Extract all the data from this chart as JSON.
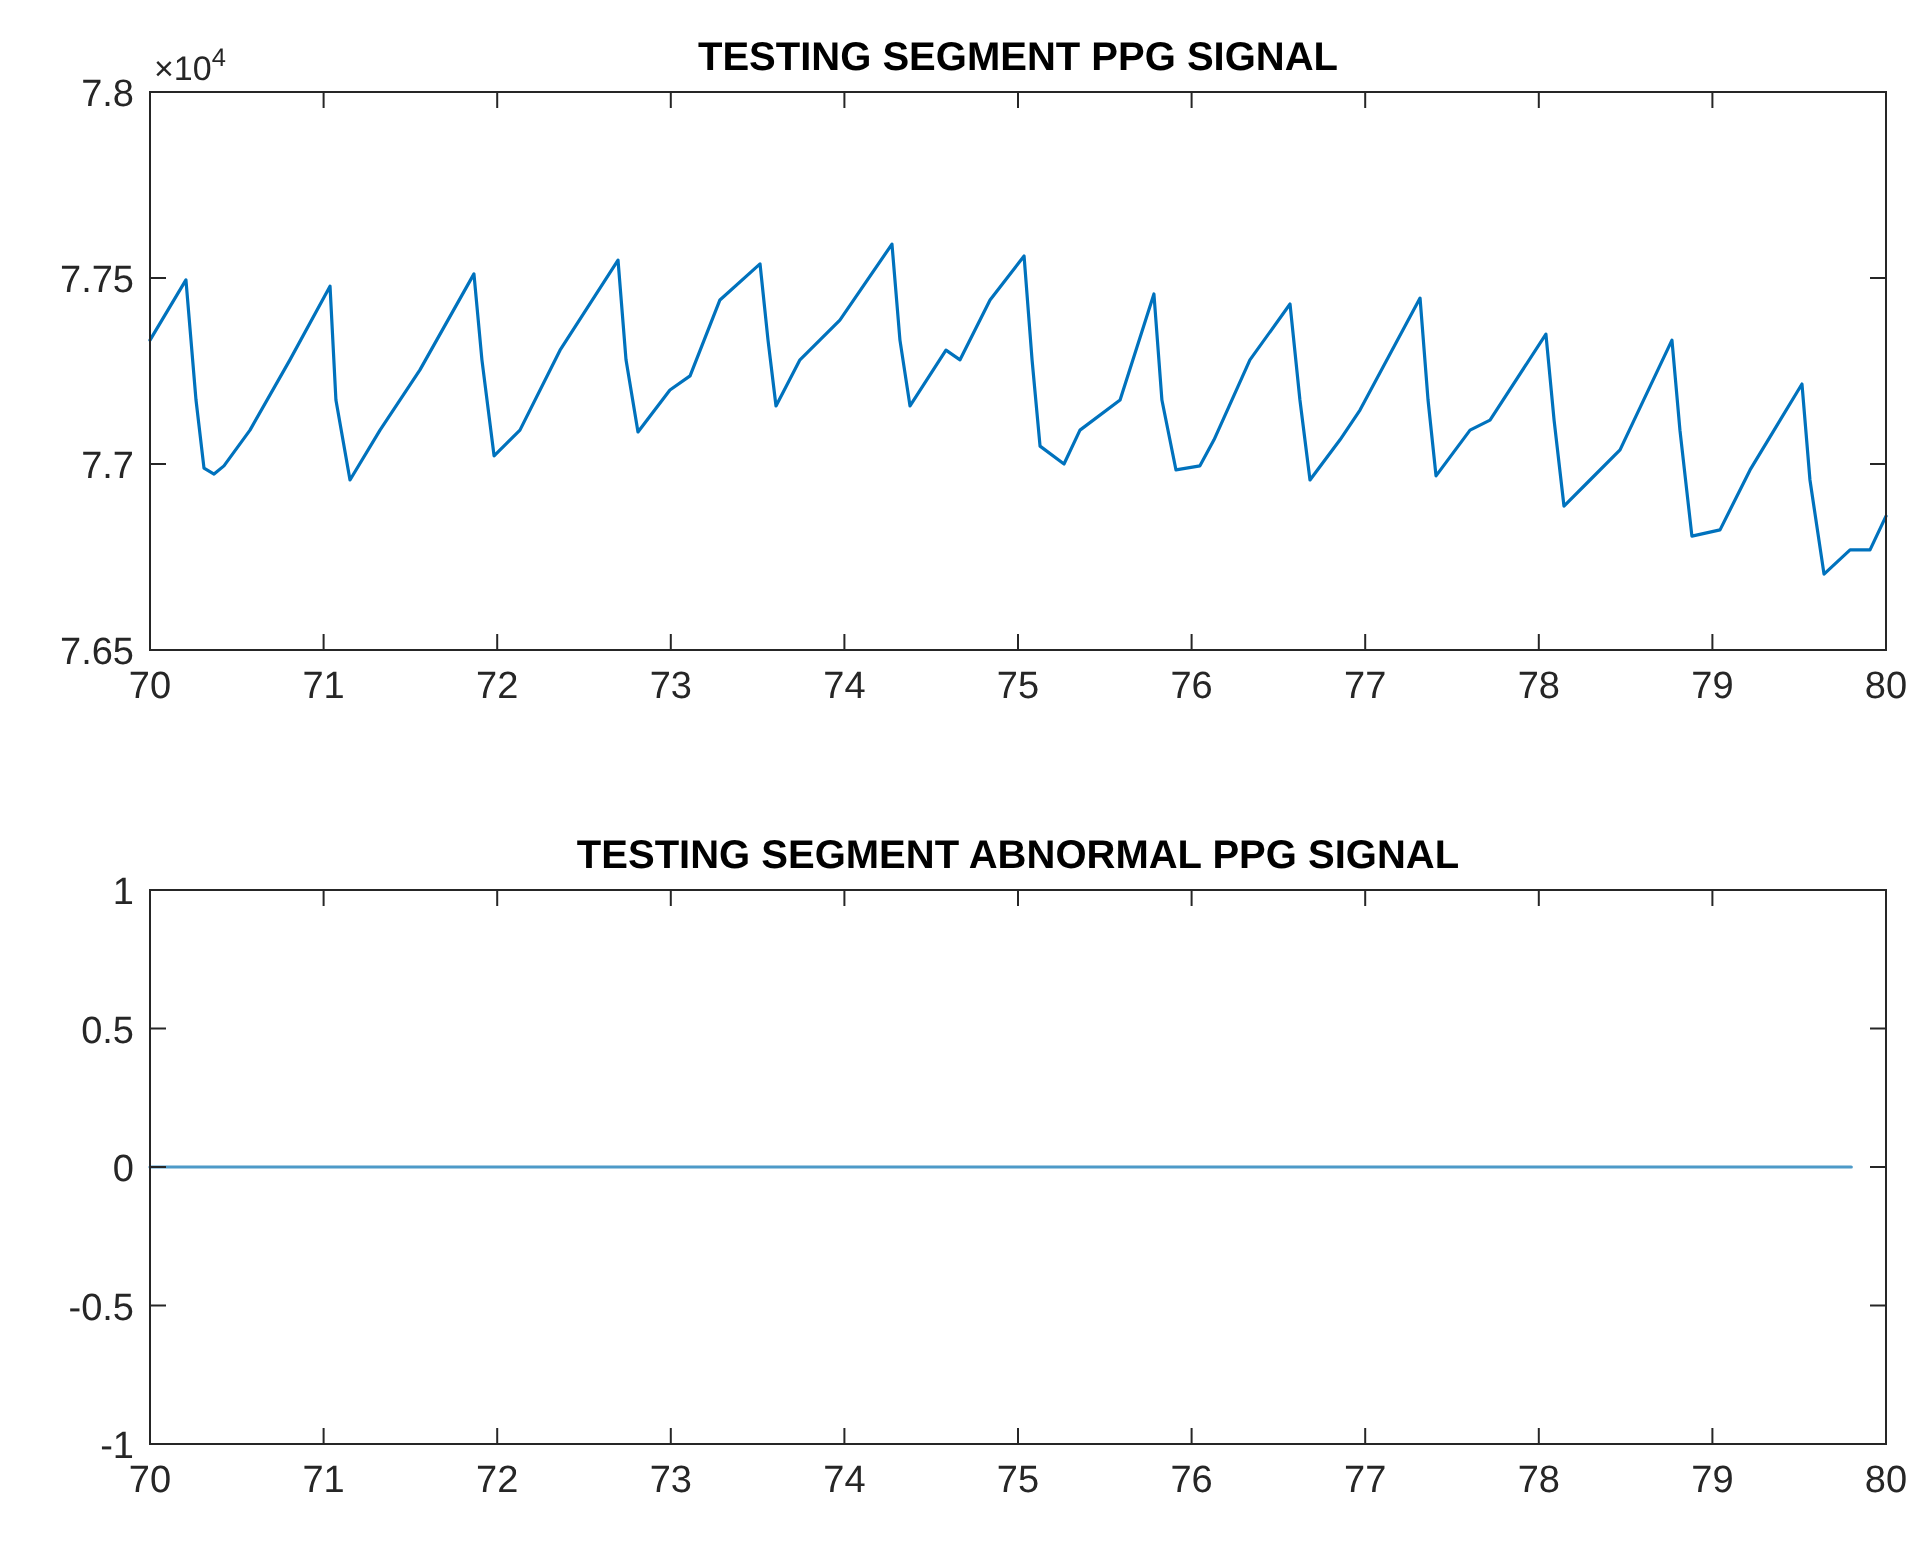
{
  "chart_data": [
    {
      "type": "line",
      "title": "TESTING SEGMENT PPG SIGNAL",
      "annotations": [
        "×10$^{4}$"
      ],
      "xlim": [
        70,
        80
      ],
      "xticks": [
        70,
        71,
        72,
        73,
        74,
        75,
        76,
        77,
        78,
        79,
        80
      ],
      "ylim": [
        7.65,
        7.8
      ],
      "yticks": [
        7.65,
        7.7,
        7.75,
        7.8
      ],
      "series": [
        {
          "color": "#0072bd",
          "x": [
            70.0,
            70.207,
            70.265,
            70.311,
            70.369,
            70.426,
            70.576,
            70.806,
            71.037,
            71.071,
            71.152,
            71.325,
            71.555,
            71.866,
            71.912,
            71.982,
            72.131,
            72.362,
            72.696,
            72.742,
            72.811,
            72.995,
            73.111,
            73.283,
            73.514,
            73.56,
            73.606,
            73.744,
            73.974,
            74.274,
            74.32,
            74.378,
            74.585,
            74.666,
            74.839,
            75.035,
            75.081,
            75.127,
            75.265,
            75.357,
            75.588,
            75.783,
            75.829,
            75.91,
            76.048,
            76.129,
            76.336,
            76.567,
            76.624,
            76.682,
            76.855,
            76.97,
            77.316,
            77.362,
            77.408,
            77.604,
            77.719,
            78.041,
            78.088,
            78.145,
            78.295,
            78.468,
            78.767,
            78.813,
            78.882,
            79.044,
            79.217,
            79.516,
            79.562,
            79.643,
            79.793,
            79.908,
            80.0
          ],
          "values": [
            7.7333,
            7.7495,
            7.7172,
            7.6989,
            7.6973,
            7.6995,
            7.7091,
            7.728,
            7.7478,
            7.7172,
            7.6957,
            7.7091,
            7.7253,
            7.7511,
            7.728,
            7.7022,
            7.7091,
            7.7306,
            7.7548,
            7.728,
            7.7086,
            7.7199,
            7.7237,
            7.7441,
            7.7538,
            7.7333,
            7.7156,
            7.728,
            7.7387,
            7.7591,
            7.7333,
            7.7156,
            7.7306,
            7.728,
            7.7441,
            7.7559,
            7.728,
            7.7048,
            7.7,
            7.7091,
            7.7172,
            7.7457,
            7.7172,
            7.6984,
            7.6995,
            7.7065,
            7.728,
            7.743,
            7.7172,
            7.6957,
            7.7065,
            7.7145,
            7.7446,
            7.7172,
            7.6968,
            7.7091,
            7.7118,
            7.7349,
            7.7118,
            7.6887,
            7.6957,
            7.7038,
            7.7333,
            7.7091,
            7.6806,
            7.6823,
            7.6984,
            7.7215,
            7.6957,
            7.6704,
            7.6769,
            7.6769,
            7.686
          ]
        }
      ]
    },
    {
      "type": "line",
      "title": "TESTING SEGMENT ABNORMAL PPG SIGNAL",
      "xlim": [
        70,
        80
      ],
      "xticks": [
        70,
        71,
        72,
        73,
        74,
        75,
        76,
        77,
        78,
        79,
        80
      ],
      "ylim": [
        -1,
        1
      ],
      "yticks": [
        -1,
        -0.5,
        0,
        0.5,
        1
      ],
      "series": [
        {
          "color": "#4d9ac8",
          "x": [
            70,
            79.8
          ],
          "values": [
            0,
            0
          ]
        }
      ]
    }
  ]
}
